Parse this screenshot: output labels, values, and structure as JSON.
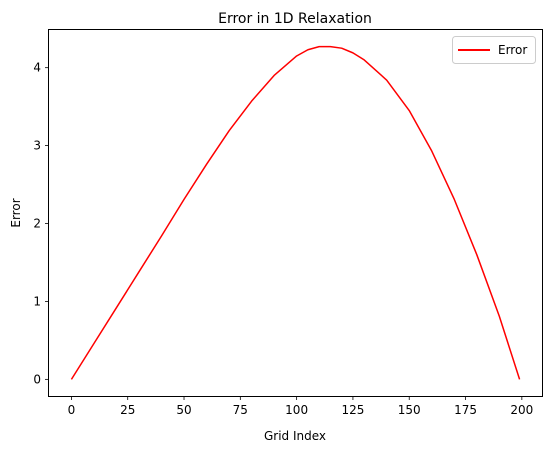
{
  "chart_data": {
    "type": "line",
    "title": "Error in 1D Relaxation",
    "xlabel": "Grid Index",
    "ylabel": "Error",
    "xlim": [
      -9.95,
      208.95
    ],
    "ylim": [
      -0.2135,
      4.4835
    ],
    "xticks": [
      0,
      25,
      50,
      75,
      100,
      125,
      150,
      175,
      200
    ],
    "yticks": [
      0,
      1,
      2,
      3,
      4
    ],
    "grid": false,
    "legend": "top-right",
    "series": [
      {
        "name": "Error",
        "color": "#ff0000",
        "x": [
          0,
          10,
          20,
          30,
          40,
          50,
          60,
          70,
          80,
          90,
          100,
          105,
          110,
          115,
          120,
          125,
          130,
          140,
          150,
          160,
          170,
          180,
          190,
          199
        ],
        "y": [
          0,
          0.46,
          0.92,
          1.38,
          1.84,
          2.31,
          2.76,
          3.19,
          3.57,
          3.9,
          4.15,
          4.23,
          4.27,
          4.27,
          4.25,
          4.19,
          4.1,
          3.84,
          3.45,
          2.93,
          2.31,
          1.6,
          0.81,
          0
        ]
      }
    ]
  }
}
